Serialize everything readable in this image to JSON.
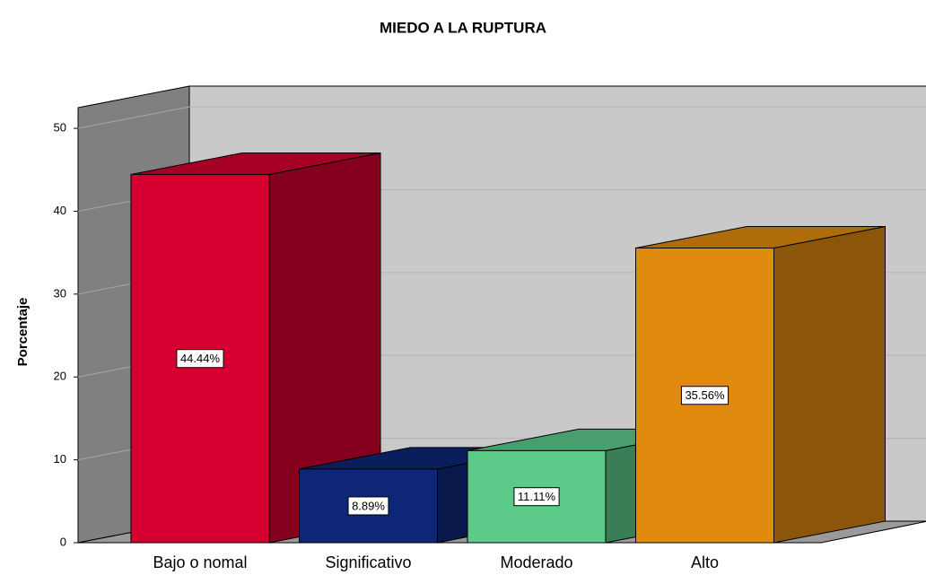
{
  "chart_data": {
    "type": "bar3d",
    "title": "MIEDO A LA RUPTURA",
    "y_label": "Porcentaje",
    "categories": [
      "Bajo o nomal",
      "Significativo",
      "Moderado",
      "Alto"
    ],
    "values": [
      44.44,
      8.89,
      11.11,
      35.56
    ],
    "value_labels": [
      "44.44%",
      "8.89%",
      "11.11%",
      "35.56%"
    ],
    "colors": [
      "#d60030",
      "#0d2677",
      "#5ccb8a",
      "#e08a0e"
    ],
    "ylim": [
      0,
      52.5
    ],
    "yticks": [
      0,
      10,
      20,
      30,
      40,
      50
    ],
    "grid": true
  }
}
